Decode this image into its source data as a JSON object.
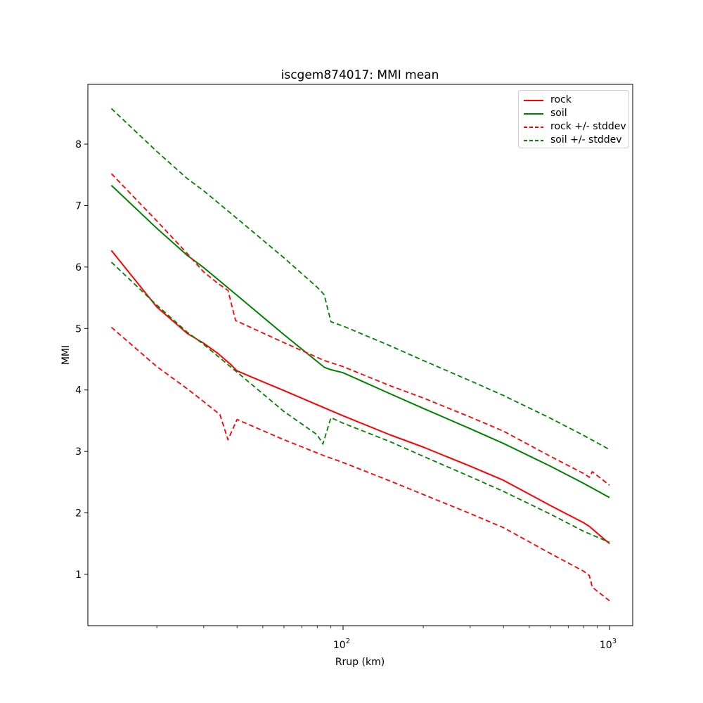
{
  "figure": {
    "title": "iscgem874017: MMI mean",
    "xlabel": "Rrup (km)",
    "ylabel": "MMI"
  },
  "chart_data": {
    "type": "line",
    "title": "iscgem874017: MMI mean",
    "xlabel": "Rrup (km)",
    "ylabel": "MMI",
    "x_scale": "log",
    "x_range_km": [
      11,
      1220
    ],
    "y_range": [
      0.17,
      8.97
    ],
    "y_ticks": [
      1,
      2,
      3,
      4,
      5,
      6,
      7,
      8
    ],
    "x_major_ticks": [
      {
        "km": 100,
        "base": "10",
        "exp": "2"
      },
      {
        "km": 1000,
        "base": "10",
        "exp": "3"
      }
    ],
    "x_minor_ticks_km": [
      20,
      30,
      40,
      50,
      60,
      70,
      80,
      90,
      200,
      300,
      400,
      500,
      600,
      700,
      800,
      900
    ],
    "grid": false,
    "legend_position": "upper right",
    "legend": [
      {
        "label": "rock",
        "color": "#ff0000",
        "dash": false
      },
      {
        "label": "soil",
        "color": "#008000",
        "dash": false
      },
      {
        "label": "rock +/- stddev",
        "color": "#ff0000",
        "dash": true
      },
      {
        "label": "soil +/- stddev",
        "color": "#008000",
        "dash": true
      }
    ],
    "series": [
      {
        "name": "rock",
        "color": "#ff0000",
        "style": "solid",
        "in_legend": true,
        "points": [
          [
            13.5,
            6.27
          ],
          [
            20,
            5.35
          ],
          [
            26,
            4.92
          ],
          [
            30,
            4.76
          ],
          [
            34,
            4.59
          ],
          [
            38,
            4.41
          ],
          [
            40,
            4.31
          ],
          [
            60,
            3.99
          ],
          [
            85,
            3.71
          ],
          [
            100,
            3.58
          ],
          [
            150,
            3.27
          ],
          [
            200,
            3.07
          ],
          [
            300,
            2.76
          ],
          [
            400,
            2.53
          ],
          [
            600,
            2.12
          ],
          [
            800,
            1.84
          ],
          [
            840,
            1.78
          ],
          [
            1000,
            1.5
          ]
        ]
      },
      {
        "name": "soil",
        "color": "#008000",
        "style": "solid",
        "in_legend": true,
        "points": [
          [
            13.5,
            7.33
          ],
          [
            20,
            6.63
          ],
          [
            26,
            6.19
          ],
          [
            30,
            5.99
          ],
          [
            40,
            5.54
          ],
          [
            60,
            4.9
          ],
          [
            85,
            4.37
          ],
          [
            90,
            4.33
          ],
          [
            100,
            4.28
          ],
          [
            150,
            3.94
          ],
          [
            200,
            3.7
          ],
          [
            300,
            3.37
          ],
          [
            400,
            3.13
          ],
          [
            600,
            2.76
          ],
          [
            800,
            2.48
          ],
          [
            1000,
            2.25
          ]
        ]
      },
      {
        "name": "rock + stddev",
        "color": "#ff0000",
        "style": "dashed",
        "in_legend": false,
        "points": [
          [
            13.5,
            7.52
          ],
          [
            20,
            6.75
          ],
          [
            26,
            6.22
          ],
          [
            30,
            5.92
          ],
          [
            34,
            5.73
          ],
          [
            37,
            5.62
          ],
          [
            39.5,
            5.13
          ],
          [
            60,
            4.77
          ],
          [
            85,
            4.48
          ],
          [
            100,
            4.38
          ],
          [
            150,
            4.07
          ],
          [
            200,
            3.87
          ],
          [
            300,
            3.56
          ],
          [
            400,
            3.33
          ],
          [
            600,
            2.92
          ],
          [
            800,
            2.64
          ],
          [
            840,
            2.58
          ],
          [
            862,
            2.67
          ],
          [
            1000,
            2.45
          ]
        ]
      },
      {
        "name": "rock - stddev",
        "color": "#ff0000",
        "style": "dashed",
        "in_legend": false,
        "points": [
          [
            13.5,
            5.02
          ],
          [
            20,
            4.38
          ],
          [
            26,
            4.02
          ],
          [
            30,
            3.81
          ],
          [
            34.5,
            3.6
          ],
          [
            37,
            3.19
          ],
          [
            40,
            3.52
          ],
          [
            60,
            3.19
          ],
          [
            85,
            2.93
          ],
          [
            100,
            2.82
          ],
          [
            150,
            2.52
          ],
          [
            200,
            2.3
          ],
          [
            300,
            1.99
          ],
          [
            400,
            1.76
          ],
          [
            600,
            1.34
          ],
          [
            800,
            1.05
          ],
          [
            840,
            0.98
          ],
          [
            862,
            0.79
          ],
          [
            1000,
            0.57
          ]
        ]
      },
      {
        "name": "soil + stddev",
        "color": "#008000",
        "style": "dashed",
        "in_legend": false,
        "points": [
          [
            13.5,
            8.58
          ],
          [
            20,
            7.88
          ],
          [
            26,
            7.44
          ],
          [
            30,
            7.24
          ],
          [
            40,
            6.79
          ],
          [
            60,
            6.15
          ],
          [
            80,
            5.67
          ],
          [
            85,
            5.55
          ],
          [
            90,
            5.11
          ],
          [
            100,
            5.04
          ],
          [
            150,
            4.72
          ],
          [
            200,
            4.48
          ],
          [
            300,
            4.15
          ],
          [
            400,
            3.91
          ],
          [
            600,
            3.54
          ],
          [
            800,
            3.26
          ],
          [
            1000,
            3.03
          ]
        ]
      },
      {
        "name": "soil - stddev",
        "color": "#008000",
        "style": "dashed",
        "in_legend": false,
        "points": [
          [
            13.5,
            6.08
          ],
          [
            20,
            5.38
          ],
          [
            26,
            4.94
          ],
          [
            30,
            4.74
          ],
          [
            40,
            4.29
          ],
          [
            60,
            3.65
          ],
          [
            80,
            3.27
          ],
          [
            84,
            3.12
          ],
          [
            90,
            3.55
          ],
          [
            100,
            3.46
          ],
          [
            150,
            3.16
          ],
          [
            200,
            2.92
          ],
          [
            300,
            2.59
          ],
          [
            400,
            2.35
          ],
          [
            600,
            1.98
          ],
          [
            800,
            1.7
          ],
          [
            1000,
            1.52
          ]
        ]
      }
    ]
  }
}
